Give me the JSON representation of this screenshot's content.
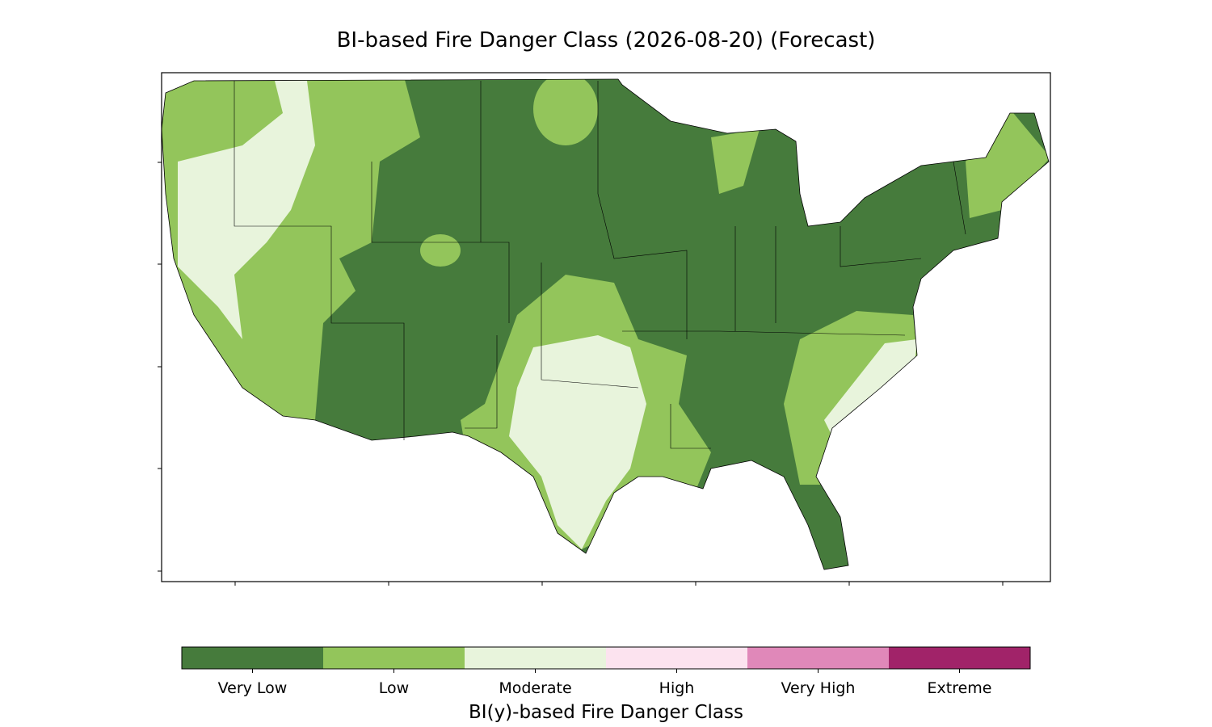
{
  "title": "BI-based Fire Danger Class (2026-08-20) (Forecast)",
  "colorbar": {
    "label": "BI(y)-based Fire Danger Class",
    "classes": [
      {
        "name": "Very Low",
        "color": "#467b3c"
      },
      {
        "name": "Low",
        "color": "#93c55b"
      },
      {
        "name": "Moderate",
        "color": "#e8f4dc"
      },
      {
        "name": "High",
        "color": "#fce3ef"
      },
      {
        "name": "Very High",
        "color": "#e088b9"
      },
      {
        "name": "Extreme",
        "color": "#a12369"
      }
    ]
  }
}
